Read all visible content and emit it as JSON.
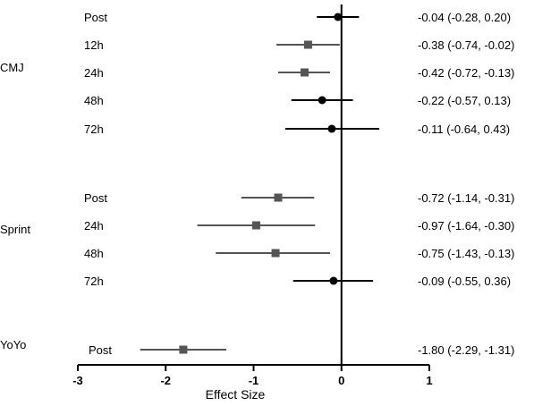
{
  "chart_data": {
    "type": "forest",
    "xlabel": "Effect Size",
    "xlim": [
      -3,
      1
    ],
    "xticks": [
      -3,
      -2,
      -1,
      0,
      1
    ],
    "groups": [
      {
        "name": "CMJ",
        "rows": [
          {
            "label": "Post",
            "es": -0.04,
            "lo": -0.28,
            "hi": 0.2,
            "text": "-0.04 (-0.28, 0.20)",
            "marker": "circle"
          },
          {
            "label": "12h",
            "es": -0.38,
            "lo": -0.74,
            "hi": -0.02,
            "text": "-0.38 (-0.74, -0.02)",
            "marker": "square"
          },
          {
            "label": "24h",
            "es": -0.42,
            "lo": -0.72,
            "hi": -0.13,
            "text": "-0.42 (-0.72, -0.13)",
            "marker": "square"
          },
          {
            "label": "48h",
            "es": -0.22,
            "lo": -0.57,
            "hi": 0.13,
            "text": "-0.22 (-0.57, 0.13)",
            "marker": "circle"
          },
          {
            "label": "72h",
            "es": -0.11,
            "lo": -0.64,
            "hi": 0.43,
            "text": "-0.11 (-0.64, 0.43)",
            "marker": "circle"
          }
        ]
      },
      {
        "name": "Sprint",
        "rows": [
          {
            "label": "Post",
            "es": -0.72,
            "lo": -1.14,
            "hi": -0.31,
            "text": "-0.72 (-1.14, -0.31)",
            "marker": "square"
          },
          {
            "label": "24h",
            "es": -0.97,
            "lo": -1.64,
            "hi": -0.3,
            "text": "-0.97 (-1.64, -0.30)",
            "marker": "square"
          },
          {
            "label": "48h",
            "es": -0.75,
            "lo": -1.43,
            "hi": -0.13,
            "text": "-0.75 (-1.43, -0.13)",
            "marker": "square"
          },
          {
            "label": "72h",
            "es": -0.09,
            "lo": -0.55,
            "hi": 0.36,
            "text": "-0.09 (-0.55, 0.36)",
            "marker": "circle"
          }
        ]
      },
      {
        "name": "YoYo",
        "rows": [
          {
            "label": "Post",
            "es": -1.8,
            "lo": -2.29,
            "hi": -1.31,
            "text": "-1.80 (-2.29, -1.31)",
            "marker": "square"
          }
        ]
      }
    ],
    "colors": {
      "circle": "#000000",
      "square": "#555555",
      "axis": "#000000"
    }
  }
}
